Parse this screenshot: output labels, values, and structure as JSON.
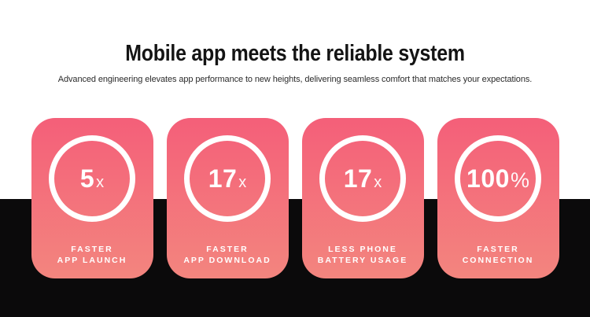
{
  "header": {
    "title": "Mobile app meets the reliable system",
    "subtitle": "Advanced engineering elevates app performance to new heights, delivering seamless comfort that matches your expectations."
  },
  "cards": [
    {
      "value": "5",
      "suffix": "x",
      "label_lines": [
        "FASTER",
        "APP LAUNCH"
      ]
    },
    {
      "value": "17",
      "suffix": "x",
      "label_lines": [
        "FASTER",
        "APP DOWNLOAD"
      ]
    },
    {
      "value": "17",
      "suffix": "x",
      "label_lines": [
        "LESS PHONE",
        "BATTERY USAGE"
      ]
    },
    {
      "value": "100",
      "suffix": "%",
      "label_lines": [
        "FASTER",
        "CONNECTION"
      ]
    }
  ],
  "colors": {
    "card_gradient_top": "#f45f79",
    "card_gradient_bottom": "#f3857e",
    "band_black": "#0b0a0b",
    "page_white": "#ffffff",
    "ring_white": "#ffffff",
    "text_dark": "#141414",
    "text_white": "#ffffff"
  }
}
